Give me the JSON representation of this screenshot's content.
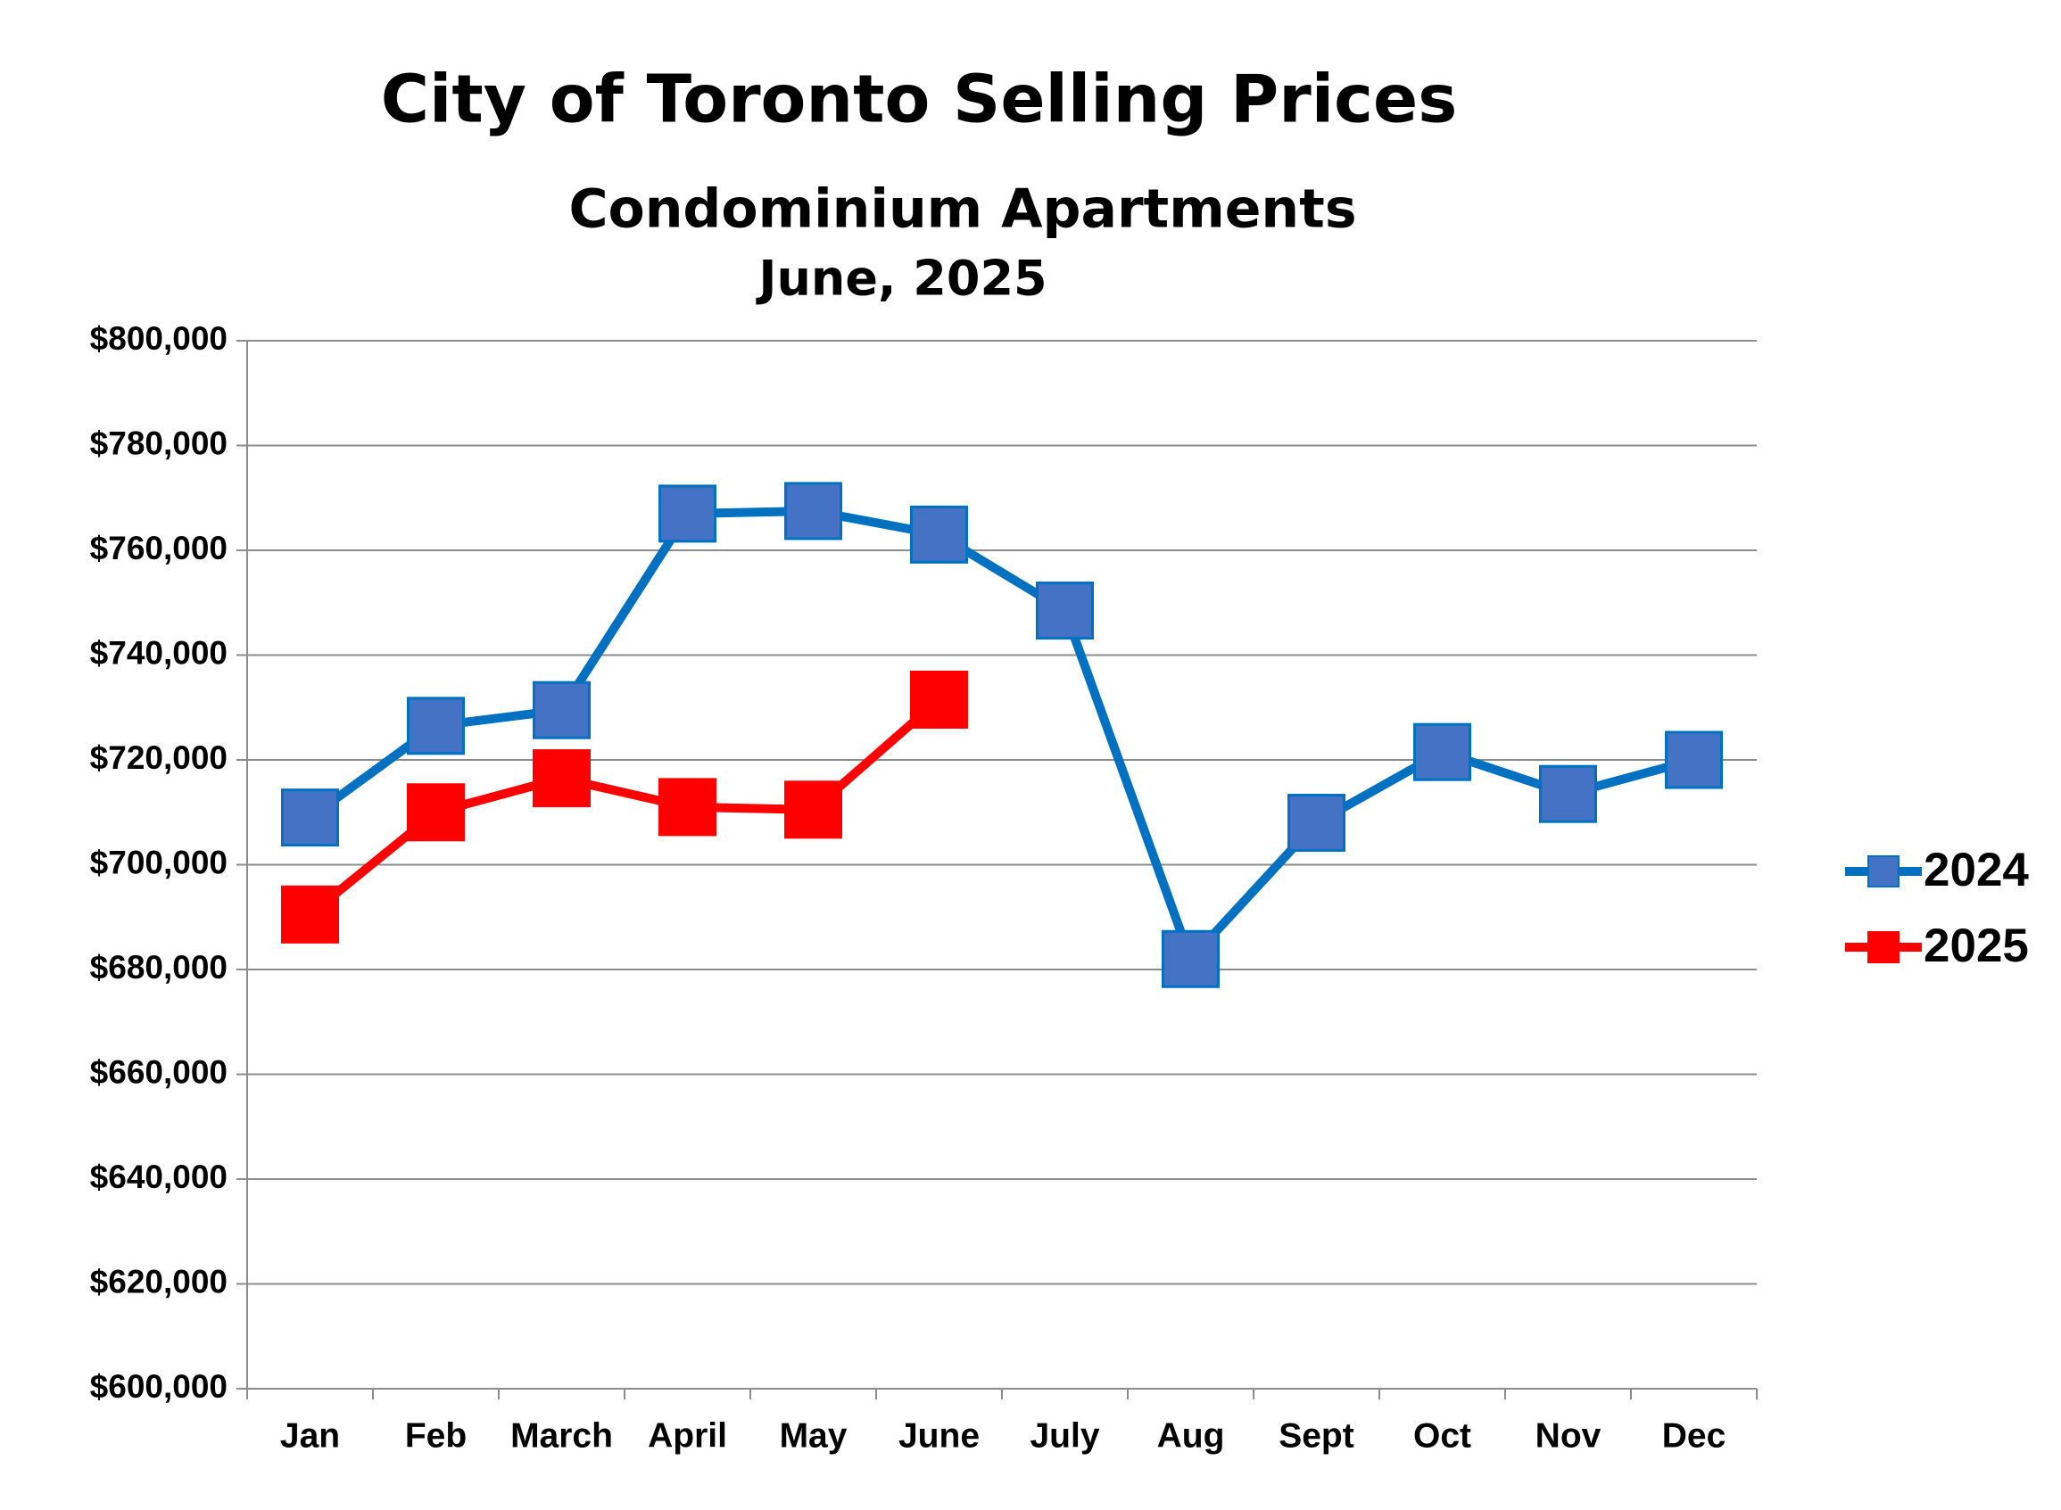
{
  "chart_data": {
    "type": "line",
    "title": "City of Toronto Selling Prices",
    "subtitle": "Condominium Apartments",
    "date_label": "June, 2025",
    "categories": [
      "Jan",
      "Feb",
      "March",
      "April",
      "May",
      "June",
      "July",
      "Aug",
      "Sept",
      "Oct",
      "Nov",
      "Dec"
    ],
    "series": [
      {
        "name": "2024",
        "color": "#0070c0",
        "marker_color": "#4472c4",
        "values": [
          709000,
          726500,
          729500,
          767000,
          767500,
          763000,
          748500,
          682000,
          708000,
          721500,
          713500,
          720000
        ]
      },
      {
        "name": "2025",
        "color": "#ff0000",
        "marker_color": "#ff0000",
        "values": [
          690500,
          710000,
          716500,
          711000,
          710500,
          731500,
          null,
          null,
          null,
          null,
          null,
          null
        ]
      }
    ],
    "ylim": [
      600000,
      800000
    ],
    "yticks": [
      {
        "value": 600000,
        "label": "$600,000"
      },
      {
        "value": 620000,
        "label": "$620,000"
      },
      {
        "value": 640000,
        "label": "$640,000"
      },
      {
        "value": 660000,
        "label": "$660,000"
      },
      {
        "value": 680000,
        "label": "$680,000"
      },
      {
        "value": 700000,
        "label": "$700,000"
      },
      {
        "value": 720000,
        "label": "$720,000"
      },
      {
        "value": 740000,
        "label": "$740,000"
      },
      {
        "value": 760000,
        "label": "$760,000"
      },
      {
        "value": 780000,
        "label": "$780,000"
      },
      {
        "value": 800000,
        "label": "$800,000"
      }
    ],
    "grid": true,
    "legend": "right"
  }
}
